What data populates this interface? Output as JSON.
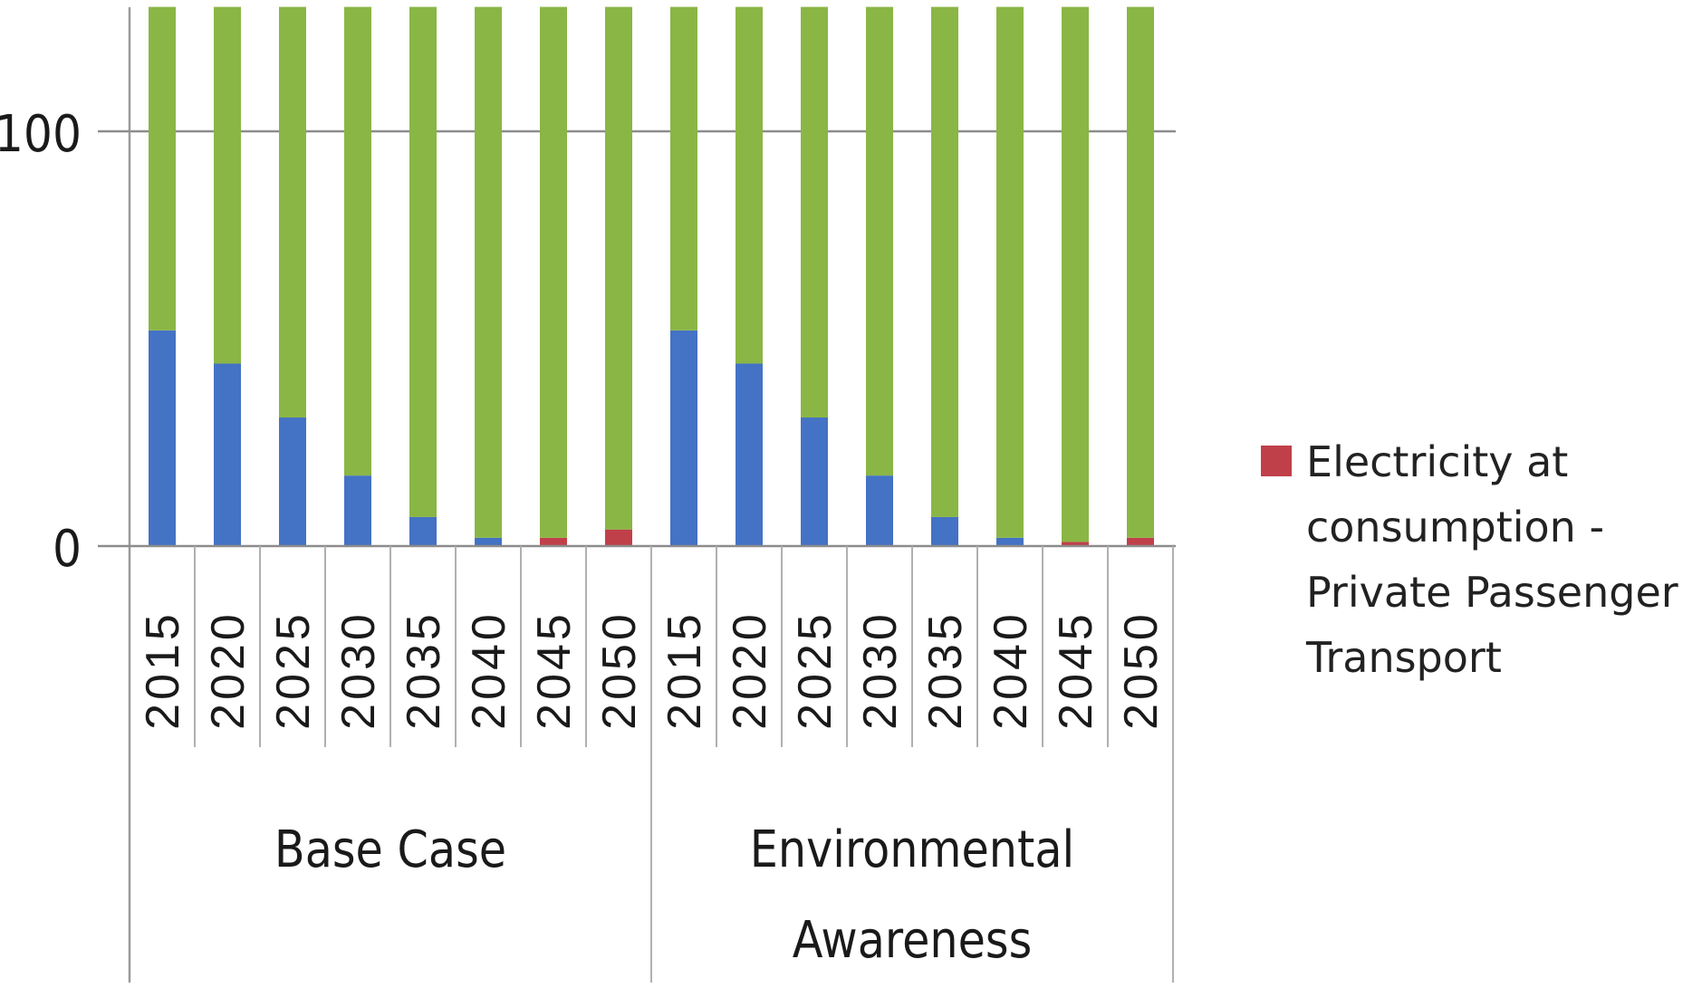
{
  "chart_data": {
    "type": "bar",
    "stacked": true,
    "ylim": [
      0,
      130
    ],
    "yticks": [
      {
        "value": 0,
        "label": "0"
      },
      {
        "value": 100,
        "label": "100"
      }
    ],
    "grid": true,
    "groups": [
      {
        "name": "Base Case",
        "categories": [
          "2015",
          "2020",
          "2025",
          "2030",
          "2035",
          "2040",
          "2045",
          "2050"
        ],
        "series_values": {
          "blue": [
            52,
            44,
            31,
            17,
            7,
            2,
            0,
            0
          ],
          "red": [
            0,
            0,
            0,
            0,
            0,
            0,
            2,
            4
          ],
          "green": [
            78,
            86,
            99,
            113,
            123,
            128,
            128,
            126
          ]
        }
      },
      {
        "name": "Environmental Awareness",
        "name_lines": [
          "Environmental",
          "Awareness"
        ],
        "categories": [
          "2015",
          "2020",
          "2025",
          "2030",
          "2035",
          "2040",
          "2045",
          "2050"
        ],
        "series_values": {
          "blue": [
            52,
            44,
            31,
            17,
            7,
            2,
            0,
            0
          ],
          "red": [
            0,
            0,
            0,
            0,
            0,
            0,
            1,
            2
          ],
          "green": [
            78,
            86,
            99,
            113,
            123,
            128,
            129,
            128
          ]
        }
      }
    ],
    "series": [
      {
        "key": "blue",
        "color": "#4472c4"
      },
      {
        "key": "red",
        "name": "Electricity at consumption - Private Passenger Transport",
        "color": "#c0404a"
      },
      {
        "key": "green",
        "color": "#8ab645"
      }
    ],
    "legend": {
      "position": "right",
      "entries": [
        {
          "series": "red",
          "color": "#c0404a",
          "label_lines": [
            "Electricity at",
            "consumption -",
            "Private Passenger",
            "Transport"
          ]
        }
      ]
    }
  }
}
